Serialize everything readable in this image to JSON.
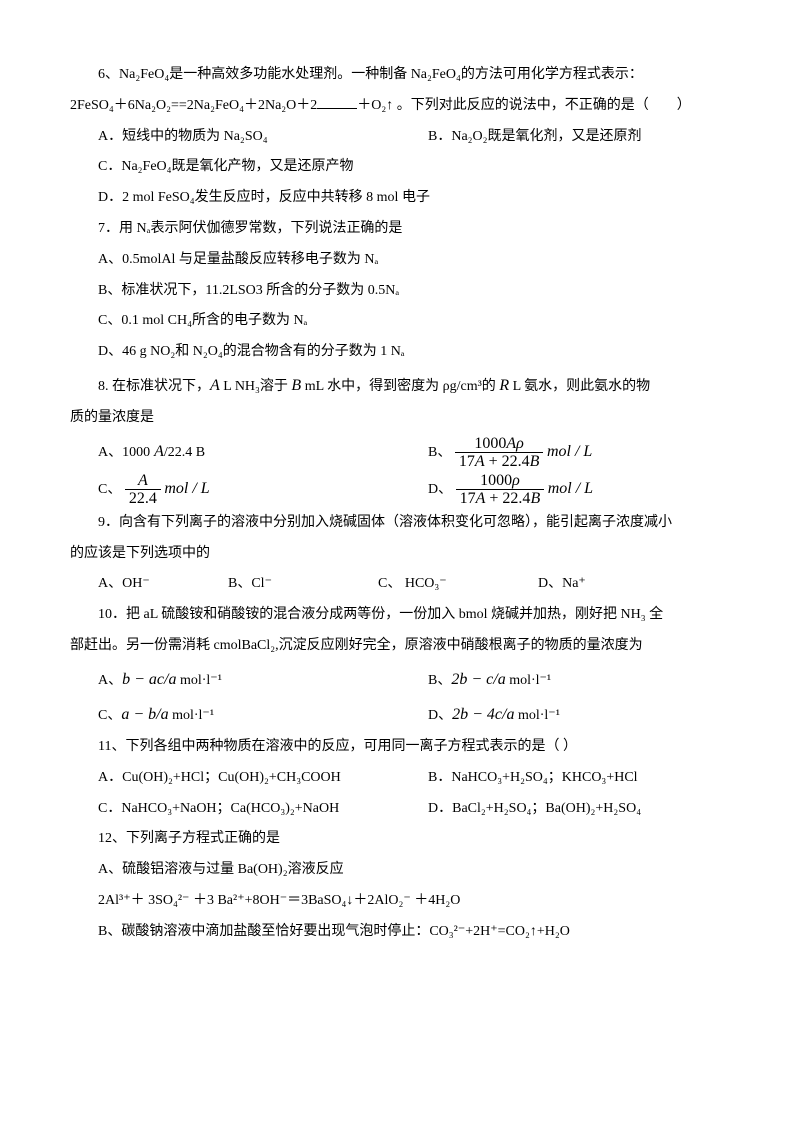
{
  "q6": {
    "stem1": "6、Na₂FeO₄是一种高效多功能水处理剂。一种制备 Na₂FeO₄的方法可用化学方程式表示：",
    "stem2_pre": "2FeSO₄＋6Na₂O₂==2Na₂FeO₄＋2Na₂O＋2",
    "stem2_post": "＋O₂↑ 。下列对此反应的说法中，不正确的是（　　）",
    "A": "A．短线中的物质为 Na₂SO₄",
    "B": "B．Na₂O₂既是氧化剂，又是还原剂",
    "C": "C．Na₂FeO₄既是氧化产物，又是还原产物",
    "D": "D．2 mol FeSO₄发生反应时，反应中共转移 8 mol 电子"
  },
  "q7": {
    "stem": "7．用 Nₐ表示阿伏伽德罗常数，下列说法正确的是",
    "A": "A、0.5molAl 与足量盐酸反应转移电子数为 Nₐ",
    "B": "B、标准状况下，11.2LSO3 所含的分子数为 0.5Nₐ",
    "C": "C、0.1 mol CH₄所含的电子数为 Nₐ",
    "D": "D、46 g NO₂和 N₂O₄的混合物含有的分子数为 1 Nₐ"
  },
  "q8": {
    "stem_a": "8. 在标准状况下，",
    "stem_b": " L NH₃溶于 ",
    "stem_c": " mL 水中，得到密度为 ρg/cm³的 ",
    "stem_d": " L 氨水，则此氨水的物",
    "stem2": "质的量浓度是",
    "A_pre": "A、1000",
    "A_post": "/22.4 B",
    "B_pre": "B、",
    "B_num": "1000Aρ",
    "B_den": "17A + 22.4B",
    "C_pre": "C、",
    "C_num": "A",
    "C_den": "22.4",
    "D_pre": "D、",
    "D_num": "1000ρ",
    "D_den": "17A + 22.4B",
    "unit": "mol / L"
  },
  "q9": {
    "stem1": "9．向含有下列离子的溶液中分别加入烧碱固体（溶液体积变化可忽略），能引起离子浓度减小",
    "stem2": "的应该是下列选项中的",
    "A": "A、OH⁻",
    "B": "B、Cl⁻",
    "C": "C、 HCO₃⁻",
    "D": "D、Na⁺"
  },
  "q10": {
    "stem1": "10．把 aL 硫酸铵和硝酸铵的混合液分成两等份，一份加入 bmol  烧碱并加热，刚好把 NH₃  全",
    "stem2": "部赶出。另一份需消耗 cmolBaCl₂,沉淀反应刚好完全，原溶液中硝酸根离子的物质的量浓度为",
    "A_pre": "A、",
    "A_math": "b − ac/a",
    "A_post": " mol·l⁻¹",
    "B_pre": "B、",
    "B_math": "2b − c/a",
    "B_post": " mol·l⁻¹",
    "C_pre": "C、",
    "C_math": "a − b/a",
    "C_post": " mol·l⁻¹",
    "D_pre": "D、",
    "D_math": "2b − 4c/a",
    "D_post": " mol·l⁻¹"
  },
  "q11": {
    "stem": "11、下列各组中两种物质在溶液中的反应，可用同一离子方程式表示的是（  ）",
    "A": "A．Cu(OH)₂+HCl；Cu(OH)₂+CH₃COOH",
    "B": "B．NaHCO₃+H₂SO₄；KHCO₃+HCl",
    "C": "C．NaHCO₃+NaOH；Ca(HCO₃)₂+NaOH",
    "D": "D．BaCl₂+H₂SO₄；Ba(OH)₂+H₂SO₄"
  },
  "q12": {
    "stem": "12、下列离子方程式正确的是",
    "A1": "A、硫酸铝溶液与过量 Ba(OH)₂溶液反应",
    "A2": "2Al³⁺＋ 3SO₄²⁻ ＋3 Ba²⁺+8OH⁻＝3BaSO₄↓＋2AlO₂⁻ ＋4H₂O",
    "B": "B、碳酸钠溶液中滴加盐酸至恰好要出现气泡时停止：CO₃²⁻+2H⁺=CO₂↑+H₂O"
  }
}
